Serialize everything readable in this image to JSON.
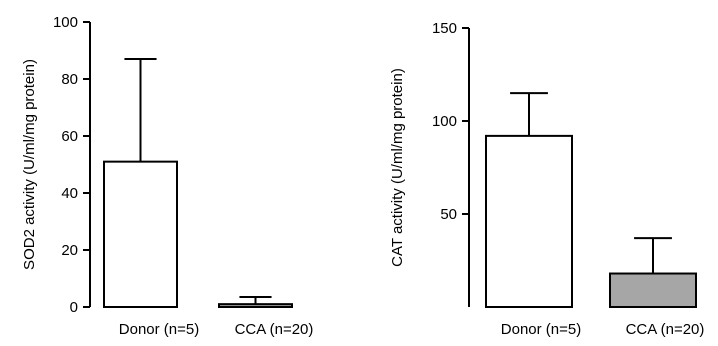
{
  "chart_data": [
    {
      "type": "bar",
      "categories": [
        "Donor (n=5)",
        "CCA (n=20)"
      ],
      "values": [
        51,
        1
      ],
      "error_upper": [
        87,
        3.5
      ],
      "ylabel": "SOD2 activity (U/ml/mg protein)",
      "ylim": [
        0,
        100
      ],
      "yticks": [
        0,
        20,
        40,
        60,
        80,
        100
      ],
      "bar_colors": [
        "#ffffff",
        "#a6a6a6"
      ],
      "grid": false,
      "legend": "none"
    },
    {
      "type": "bar",
      "categories": [
        "Donor (n=5)",
        "CCA (n=20)"
      ],
      "values": [
        92,
        18
      ],
      "error_upper": [
        115,
        37
      ],
      "ylabel": "CAT activity (U/ml/mg protein)",
      "ylim": [
        0,
        150
      ],
      "yticks": [
        50,
        100,
        150
      ],
      "bar_colors": [
        "#ffffff",
        "#a6a6a6"
      ],
      "grid": false,
      "legend": "none"
    }
  ]
}
